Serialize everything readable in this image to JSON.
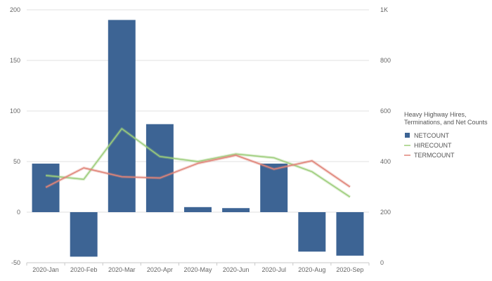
{
  "chart_data": {
    "type": "bar",
    "categories": [
      "2020-Jan",
      "2020-Feb",
      "2020-Mar",
      "2020-Apr",
      "2020-May",
      "2020-Jun",
      "2020-Jul",
      "2020-Aug",
      "2020-Sep"
    ],
    "left_axis": {
      "ticks": [
        "200",
        "150",
        "100",
        "50",
        "0",
        "-50"
      ],
      "ylim": [
        -50,
        200
      ]
    },
    "right_axis": {
      "ticks": [
        "1K",
        "800",
        "600",
        "400",
        "200",
        "0"
      ],
      "ylim": [
        0,
        1000
      ]
    },
    "series": [
      {
        "name": "NETCOUNT",
        "type": "bar",
        "axis": "left",
        "color": "#3d6494",
        "values": [
          48,
          -44,
          190,
          87,
          5,
          4,
          48,
          -39,
          -43
        ]
      },
      {
        "name": "HIRECOUNT",
        "type": "line",
        "axis": "right",
        "color": "#9dcd7b",
        "values": [
          345,
          330,
          530,
          420,
          400,
          430,
          415,
          360,
          260
        ]
      },
      {
        "name": "TERMCOUNT",
        "type": "line",
        "axis": "right",
        "color": "#e08478",
        "values": [
          298,
          375,
          340,
          335,
          393,
          425,
          370,
          403,
          300
        ]
      }
    ],
    "legend": {
      "title": "Heavy Highway Hires, Terminations, and Net Counts",
      "position": "right"
    },
    "grid": true
  }
}
